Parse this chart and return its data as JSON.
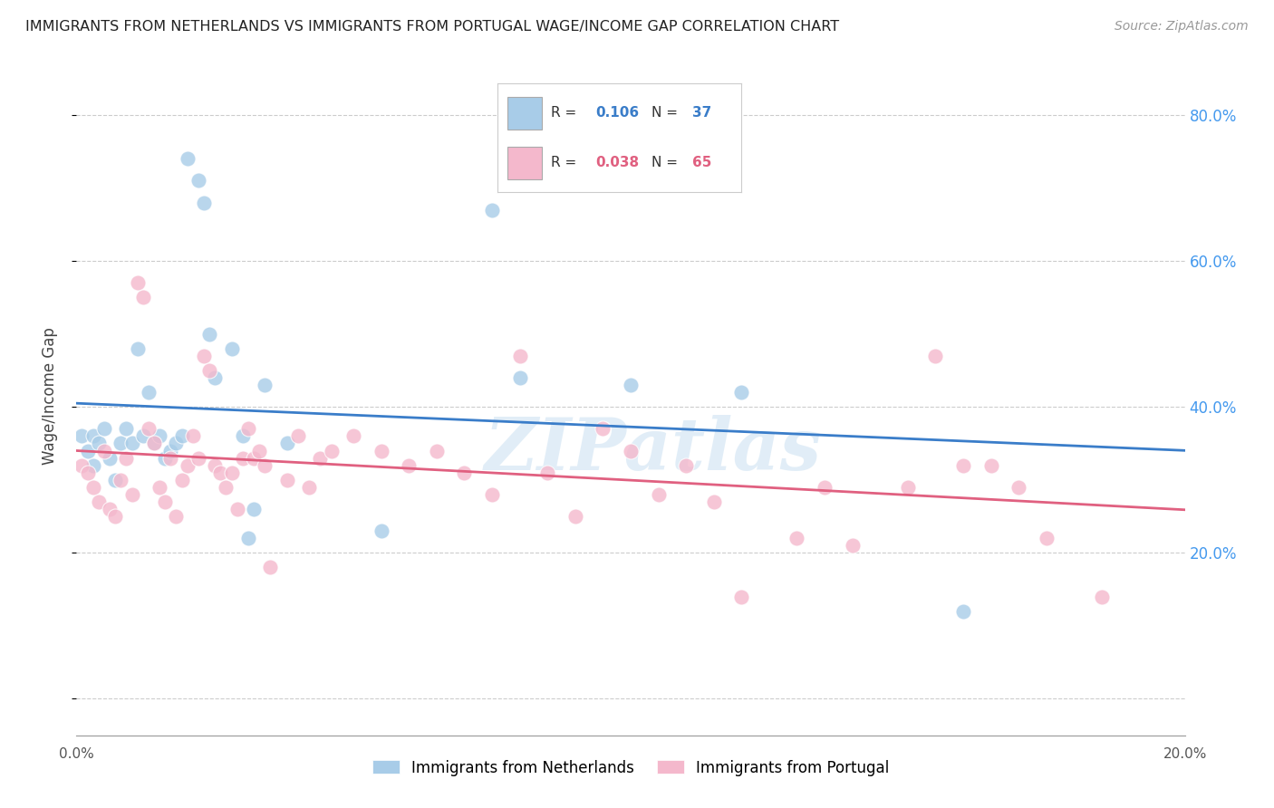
{
  "title": "IMMIGRANTS FROM NETHERLANDS VS IMMIGRANTS FROM PORTUGAL WAGE/INCOME GAP CORRELATION CHART",
  "source": "Source: ZipAtlas.com",
  "ylabel": "Wage/Income Gap",
  "xlim": [
    0.0,
    0.2
  ],
  "ylim": [
    -0.05,
    0.88
  ],
  "yticks": [
    0.0,
    0.2,
    0.4,
    0.6,
    0.8
  ],
  "ytick_labels": [
    "",
    "20.0%",
    "40.0%",
    "60.0%",
    "80.0%"
  ],
  "xticks": [
    0.0,
    0.04,
    0.08,
    0.12,
    0.16,
    0.2
  ],
  "netherlands_R": "0.106",
  "netherlands_N": "37",
  "portugal_R": "0.038",
  "portugal_N": "65",
  "netherlands_color": "#a8cce8",
  "portugal_color": "#f4b8cc",
  "netherlands_line_color": "#3a7dc9",
  "portugal_line_color": "#e06080",
  "watermark": "ZIPatlas",
  "nl_legend_color": "#3a7dc9",
  "pt_legend_color": "#e06080",
  "nl_patch_color": "#a8cce8",
  "pt_patch_color": "#f4b8cc",
  "netherlands_x": [
    0.001,
    0.002,
    0.003,
    0.003,
    0.004,
    0.005,
    0.006,
    0.007,
    0.008,
    0.009,
    0.01,
    0.011,
    0.012,
    0.013,
    0.014,
    0.015,
    0.016,
    0.017,
    0.018,
    0.019,
    0.02,
    0.022,
    0.023,
    0.024,
    0.025,
    0.028,
    0.03,
    0.031,
    0.032,
    0.034,
    0.038,
    0.055,
    0.075,
    0.08,
    0.1,
    0.12,
    0.16
  ],
  "netherlands_y": [
    0.36,
    0.34,
    0.36,
    0.32,
    0.35,
    0.37,
    0.33,
    0.3,
    0.35,
    0.37,
    0.35,
    0.48,
    0.36,
    0.42,
    0.35,
    0.36,
    0.33,
    0.34,
    0.35,
    0.36,
    0.74,
    0.71,
    0.68,
    0.5,
    0.44,
    0.48,
    0.36,
    0.22,
    0.26,
    0.43,
    0.35,
    0.23,
    0.67,
    0.44,
    0.43,
    0.42,
    0.12
  ],
  "portugal_x": [
    0.001,
    0.002,
    0.003,
    0.004,
    0.005,
    0.006,
    0.007,
    0.008,
    0.009,
    0.01,
    0.011,
    0.012,
    0.013,
    0.014,
    0.015,
    0.016,
    0.017,
    0.018,
    0.019,
    0.02,
    0.021,
    0.022,
    0.023,
    0.024,
    0.025,
    0.026,
    0.027,
    0.028,
    0.029,
    0.03,
    0.031,
    0.032,
    0.033,
    0.034,
    0.035,
    0.038,
    0.04,
    0.042,
    0.044,
    0.046,
    0.05,
    0.055,
    0.06,
    0.065,
    0.07,
    0.075,
    0.08,
    0.085,
    0.09,
    0.095,
    0.1,
    0.105,
    0.11,
    0.115,
    0.12,
    0.13,
    0.135,
    0.14,
    0.15,
    0.155,
    0.16,
    0.165,
    0.17,
    0.175,
    0.185
  ],
  "portugal_y": [
    0.32,
    0.31,
    0.29,
    0.27,
    0.34,
    0.26,
    0.25,
    0.3,
    0.33,
    0.28,
    0.57,
    0.55,
    0.37,
    0.35,
    0.29,
    0.27,
    0.33,
    0.25,
    0.3,
    0.32,
    0.36,
    0.33,
    0.47,
    0.45,
    0.32,
    0.31,
    0.29,
    0.31,
    0.26,
    0.33,
    0.37,
    0.33,
    0.34,
    0.32,
    0.18,
    0.3,
    0.36,
    0.29,
    0.33,
    0.34,
    0.36,
    0.34,
    0.32,
    0.34,
    0.31,
    0.28,
    0.47,
    0.31,
    0.25,
    0.37,
    0.34,
    0.28,
    0.32,
    0.27,
    0.14,
    0.22,
    0.29,
    0.21,
    0.29,
    0.47,
    0.32,
    0.32,
    0.29,
    0.22,
    0.14
  ]
}
